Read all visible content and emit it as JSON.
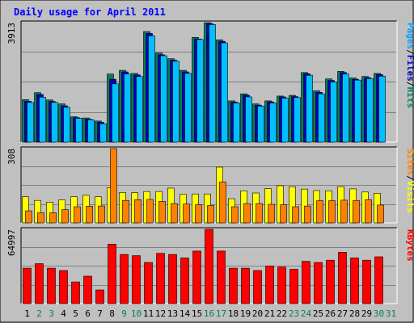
{
  "chart_data": {
    "type": "bar",
    "title": "Daily usage for April 2011",
    "categories": [
      "1",
      "2",
      "3",
      "4",
      "5",
      "6",
      "7",
      "8",
      "9",
      "10",
      "11",
      "12",
      "13",
      "14",
      "15",
      "16",
      "17",
      "18",
      "19",
      "20",
      "21",
      "22",
      "23",
      "24",
      "25",
      "26",
      "27",
      "28",
      "29",
      "30",
      "31"
    ],
    "weekend_days": [
      "2",
      "3",
      "9",
      "10",
      "16",
      "17",
      "23",
      "24",
      "30",
      "31"
    ],
    "panels": [
      {
        "name": "hits-files-pages",
        "max_label": "3913",
        "ymax": 3913,
        "axis_labels": [
          {
            "text": "Pages",
            "color": "#00a0ff"
          },
          {
            "text": "/",
            "color": "#000000"
          },
          {
            "text": "Files",
            "color": "#0000c0"
          },
          {
            "text": "/",
            "color": "#000000"
          },
          {
            "text": "Hits",
            "color": "#008060"
          }
        ],
        "series": [
          {
            "name": "Hits",
            "color": "#00805c",
            "values": [
              1390,
              1620,
              1380,
              1250,
              830,
              790,
              690,
              2230,
              2350,
              2250,
              3620,
              2920,
              2730,
              2350,
              3430,
              3910,
              3350,
              1350,
              1580,
              1250,
              1350,
              1510,
              1530,
              2280,
              1680,
              2070,
              2320,
              2100,
              2150,
              2250,
              0
            ]
          },
          {
            "name": "Files",
            "color": "#0000c0",
            "values": [
              1340,
              1560,
              1330,
              1190,
              800,
              750,
              650,
              2060,
              2300,
              2200,
              3560,
              2860,
              2680,
              2300,
              3380,
              3880,
              3300,
              1310,
              1540,
              1210,
              1320,
              1480,
              1490,
              2240,
              1630,
              2020,
              2280,
              2060,
              2110,
              2210,
              0
            ]
          },
          {
            "name": "Pages",
            "color": "#00c0ff",
            "values": [
              1300,
              1470,
              1300,
              1140,
              780,
              730,
              600,
              1910,
              2230,
              2150,
              3480,
              2830,
              2650,
              2250,
              3360,
              3850,
              3250,
              1280,
              1480,
              1180,
              1280,
              1440,
              1460,
              2190,
              1580,
              1970,
              2230,
              2030,
              2080,
              2160,
              0
            ]
          }
        ]
      },
      {
        "name": "visits-sites",
        "max_label": "308",
        "ymax": 308,
        "axis_labels": [
          {
            "text": "Sites",
            "color": "#ff8000"
          },
          {
            "text": "/",
            "color": "#000000"
          },
          {
            "text": "Visits",
            "color": "#ffff00"
          }
        ],
        "series": [
          {
            "name": "Visits",
            "color": "#ffff00",
            "values": [
              108,
              93,
              86,
              95,
              108,
              114,
              108,
              145,
              126,
              125,
              130,
              130,
              144,
              118,
              120,
              120,
              231,
              100,
              133,
              124,
              142,
              154,
              150,
              140,
              134,
              133,
              150,
              141,
              128,
              123,
              0
            ]
          },
          {
            "name": "Sites",
            "color": "#ff8000",
            "values": [
              50,
              42,
              42,
              55,
              67,
              69,
              70,
              308,
              93,
              96,
              97,
              89,
              80,
              78,
              75,
              72,
              170,
              67,
              80,
              80,
              77,
              75,
              67,
              70,
              92,
              92,
              94,
              93,
              96,
              74,
              0
            ]
          }
        ]
      },
      {
        "name": "kbytes",
        "max_label": "64997",
        "ymax": 64997,
        "axis_labels": [
          {
            "text": "KBytes",
            "color": "#ff0000"
          }
        ],
        "series": [
          {
            "name": "KBytes",
            "color": "#ff0000",
            "values": [
              31000,
              35000,
              31000,
              29000,
              19000,
              24000,
              12000,
              52000,
              43000,
              42000,
              36000,
              44000,
              43000,
              40000,
              46000,
              64997,
              46000,
              31000,
              31000,
              29000,
              33000,
              32000,
              30000,
              37000,
              36000,
              38000,
              45000,
              40000,
              38000,
              41000,
              0
            ]
          }
        ]
      }
    ]
  }
}
